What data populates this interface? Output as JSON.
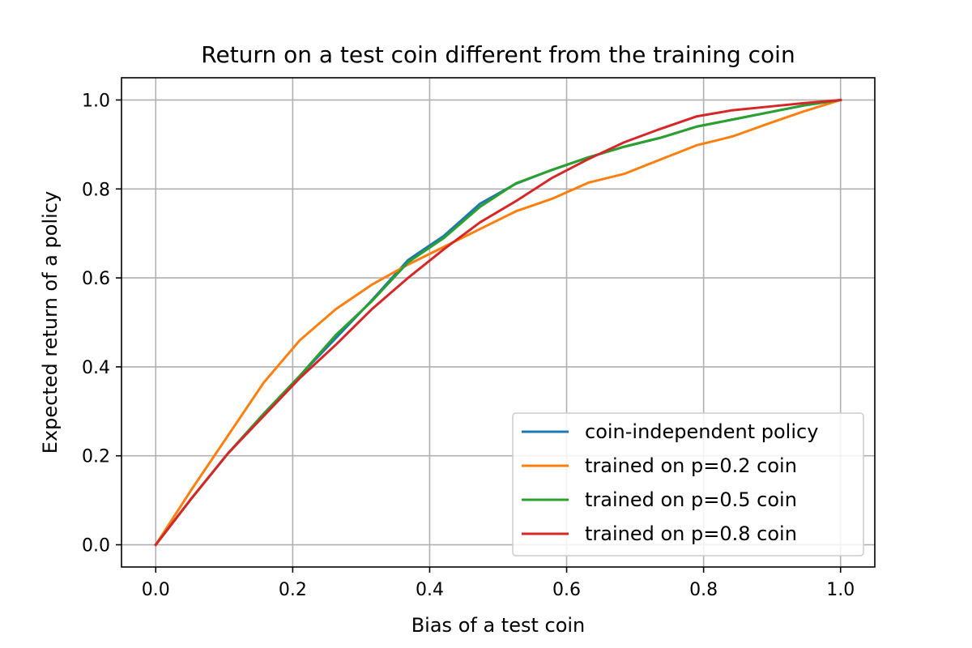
{
  "chart_data": {
    "type": "line",
    "title": "Return on a test coin different from the training coin",
    "xlabel": "Bias of a test coin",
    "ylabel": "Expected return of a policy",
    "xlim": [
      -0.05,
      1.05
    ],
    "ylim": [
      -0.05,
      1.05
    ],
    "xticks": [
      0.0,
      0.2,
      0.4,
      0.6,
      0.8,
      1.0
    ],
    "yticks": [
      0.0,
      0.2,
      0.4,
      0.6,
      0.8,
      1.0
    ],
    "xtick_labels": [
      "0.0",
      "0.2",
      "0.4",
      "0.6",
      "0.8",
      "1.0"
    ],
    "ytick_labels": [
      "0.0",
      "0.2",
      "0.4",
      "0.6",
      "0.8",
      "1.0"
    ],
    "grid": true,
    "legend_position": "bottom-right",
    "x": [
      0.0,
      0.0526,
      0.1053,
      0.1579,
      0.2105,
      0.2632,
      0.3158,
      0.3684,
      0.4211,
      0.4737,
      0.5263,
      0.5789,
      0.6316,
      0.6842,
      0.7368,
      0.7895,
      0.8421,
      0.8947,
      0.9474,
      1.0
    ],
    "series": [
      {
        "name": "coin-independent policy",
        "color": "#1f77b4",
        "values": [
          0.0,
          0.105,
          0.205,
          0.295,
          0.38,
          0.465,
          0.55,
          0.64,
          0.695,
          0.767,
          0.812,
          0.843,
          0.871,
          0.895,
          0.915,
          0.94,
          0.956,
          0.972,
          0.988,
          1.0
        ]
      },
      {
        "name": "trained on p=0.2 coin",
        "color": "#ff7f0e",
        "values": [
          0.0,
          0.125,
          0.245,
          0.365,
          0.46,
          0.53,
          0.585,
          0.63,
          0.67,
          0.71,
          0.75,
          0.778,
          0.814,
          0.834,
          0.866,
          0.898,
          0.918,
          0.947,
          0.975,
          1.0
        ]
      },
      {
        "name": "trained on p=0.5 coin",
        "color": "#2ca02c",
        "values": [
          0.0,
          0.105,
          0.205,
          0.295,
          0.38,
          0.472,
          0.548,
          0.635,
          0.69,
          0.76,
          0.813,
          0.843,
          0.871,
          0.895,
          0.915,
          0.94,
          0.956,
          0.972,
          0.988,
          1.0
        ]
      },
      {
        "name": "trained on p=0.8 coin",
        "color": "#d62728",
        "values": [
          0.0,
          0.105,
          0.205,
          0.29,
          0.375,
          0.45,
          0.53,
          0.6,
          0.665,
          0.725,
          0.773,
          0.825,
          0.867,
          0.905,
          0.935,
          0.963,
          0.977,
          0.985,
          0.993,
          1.0
        ]
      }
    ]
  }
}
